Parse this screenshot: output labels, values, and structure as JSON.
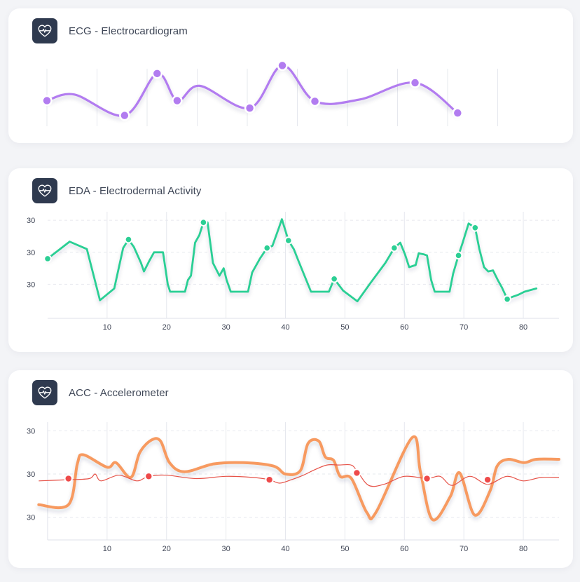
{
  "cards": [
    {
      "title": "ECG - Electrocardiogram",
      "icon": "heart-pulse-icon"
    },
    {
      "title": "EDA - Electrodermal Activity",
      "icon": "heart-pulse-icon"
    },
    {
      "title": "ACC - Accelerometer",
      "icon": "heart-pulse-icon"
    }
  ],
  "colors": {
    "ecg": "#b27cf0",
    "eda": "#2ccf94",
    "acc_main": "#f79a60",
    "acc_marker": "#ee4a4a",
    "acc_thin": "#e65248",
    "icon_bg": "#2f3a4f"
  },
  "chart_data": [
    {
      "type": "line",
      "smooth": true,
      "xlim": [
        0,
        100
      ],
      "ylim": [
        0,
        1
      ],
      "grid_lines_x": [
        0,
        10,
        20,
        30,
        40,
        50,
        60,
        70,
        80,
        90
      ],
      "x": [
        0,
        5.5,
        15.5,
        22,
        26,
        30.5,
        40.5,
        47,
        53.5,
        62.5,
        73.5,
        82
      ],
      "values": [
        0.38,
        0.48,
        0.14,
        0.82,
        0.38,
        0.62,
        0.26,
        0.95,
        0.37,
        0.4,
        0.67,
        0.18
      ],
      "markers": [
        0,
        2,
        3,
        4,
        6,
        7,
        8,
        10,
        11
      ],
      "xlabel": "",
      "ylabel": ""
    },
    {
      "type": "line",
      "xlim": [
        0,
        86
      ],
      "ylim": [
        0,
        1
      ],
      "xticks": [
        10,
        20,
        30,
        40,
        50,
        60,
        70,
        80
      ],
      "ytick_labels": [
        "30",
        "30",
        "30"
      ],
      "ytick_values": [
        0.92,
        0.62,
        0.32
      ],
      "x": [
        0,
        3.7,
        6.6,
        8.8,
        11.2,
        12.7,
        13.6,
        14.5,
        15.7,
        16.2,
        17.1,
        17.9,
        18.6,
        19.4,
        20.2,
        20.6,
        21.1,
        21.9,
        23.1,
        23.6,
        24.1,
        24.8,
        25.5,
        26.2,
        26.9,
        27.8,
        28.9,
        29.6,
        30.1,
        30.8,
        32.1,
        33.7,
        34.4,
        35.7,
        36.9,
        37.8,
        38.9,
        39.4,
        40.5,
        41.4,
        42.1,
        44.3,
        45.8,
        47.3,
        48.2,
        49.7,
        52.1,
        54.4,
        56.8,
        58.3,
        59.3,
        60.1,
        60.8,
        61.9,
        62.4,
        63.3,
        63.8,
        64.5,
        65.1,
        65.7,
        66.4,
        67.6,
        68.2,
        69.1,
        69.8,
        70.8,
        71.9,
        72.6,
        73.4,
        74.1,
        74.9,
        75.7,
        76.4,
        77.3,
        78.1,
        79.1,
        80.2,
        82.2
      ],
      "values": [
        0.56,
        0.72,
        0.65,
        0.17,
        0.28,
        0.66,
        0.74,
        0.67,
        0.52,
        0.44,
        0.54,
        0.62,
        0.62,
        0.62,
        0.32,
        0.25,
        0.25,
        0.25,
        0.25,
        0.36,
        0.4,
        0.71,
        0.78,
        0.9,
        0.9,
        0.52,
        0.4,
        0.47,
        0.36,
        0.25,
        0.25,
        0.25,
        0.43,
        0.56,
        0.66,
        0.68,
        0.85,
        0.93,
        0.73,
        0.65,
        0.55,
        0.25,
        0.25,
        0.25,
        0.37,
        0.26,
        0.16,
        0.34,
        0.52,
        0.66,
        0.71,
        0.6,
        0.48,
        0.5,
        0.61,
        0.6,
        0.59,
        0.36,
        0.25,
        0.25,
        0.25,
        0.25,
        0.42,
        0.59,
        0.71,
        0.89,
        0.85,
        0.65,
        0.48,
        0.44,
        0.45,
        0.36,
        0.29,
        0.18,
        0.2,
        0.22,
        0.25,
        0.28
      ],
      "markers": [
        0,
        6,
        23,
        34,
        38,
        44,
        49,
        63,
        66,
        73
      ],
      "xlabel": "",
      "ylabel": ""
    },
    {
      "type": "line",
      "smooth": true,
      "xlim": [
        0,
        86
      ],
      "ylim": [
        0,
        1
      ],
      "xticks": [
        10,
        20,
        30,
        40,
        50,
        60,
        70,
        80
      ],
      "ytick_labels": [
        "30",
        "30",
        "30"
      ],
      "ytick_values": [
        0.96,
        0.58,
        0.2
      ],
      "series": [
        {
          "x": [
            -1.5,
            3.5,
            5,
            6,
            10,
            11.5,
            14,
            15.5,
            17.5,
            19,
            20.5,
            23,
            28,
            33,
            38,
            40,
            42.5,
            43.8,
            45.6,
            46.7,
            48.1,
            49.2,
            51.1,
            53.7,
            55.3,
            61.3,
            62.7,
            64.7,
            67.7,
            69.3,
            71.8,
            74.4,
            75.6,
            77.5,
            80.1,
            82.2,
            86
          ],
          "values": [
            0.31,
            0.31,
            0.67,
            0.75,
            0.64,
            0.68,
            0.55,
            0.77,
            0.88,
            0.87,
            0.68,
            0.6,
            0.67,
            0.68,
            0.65,
            0.58,
            0.61,
            0.85,
            0.87,
            0.73,
            0.7,
            0.56,
            0.54,
            0.24,
            0.25,
            0.9,
            0.6,
            0.18,
            0.38,
            0.59,
            0.22,
            0.43,
            0.65,
            0.71,
            0.68,
            0.71,
            0.71
          ]
        },
        {
          "x": [
            -1.5,
            3.5,
            7,
            8,
            9,
            12,
            15,
            17,
            20,
            25,
            30,
            34.5,
            37.3,
            39,
            41,
            43,
            45,
            47,
            49,
            51,
            52,
            54,
            56.6,
            60,
            63.8,
            66,
            68,
            71,
            74,
            77.2,
            80,
            83,
            86
          ],
          "values": [
            0.52,
            0.53,
            0.54,
            0.58,
            0.52,
            0.57,
            0.52,
            0.56,
            0.57,
            0.54,
            0.56,
            0.55,
            0.53,
            0.5,
            0.53,
            0.57,
            0.62,
            0.66,
            0.66,
            0.66,
            0.61,
            0.48,
            0.49,
            0.56,
            0.54,
            0.56,
            0.48,
            0.56,
            0.49,
            0.56,
            0.52,
            0.55,
            0.55
          ]
        }
      ],
      "markers": [
        [
          3.5,
          0.54
        ],
        [
          17,
          0.56
        ],
        [
          37.3,
          0.53
        ],
        [
          52,
          0.59
        ],
        [
          63.8,
          0.54
        ],
        [
          74,
          0.53
        ]
      ],
      "xlabel": "",
      "ylabel": ""
    }
  ]
}
